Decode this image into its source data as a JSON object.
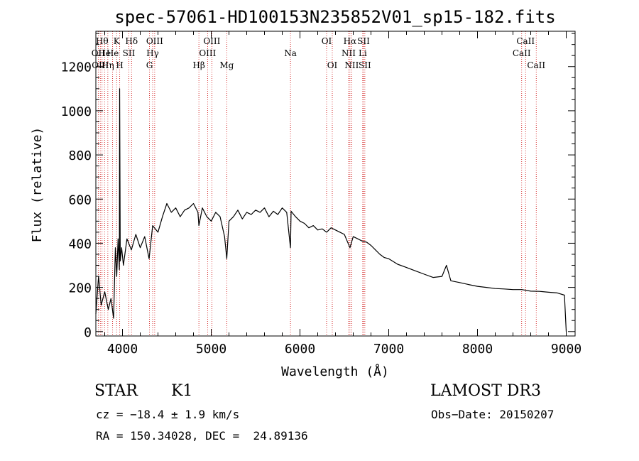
{
  "chart_data": {
    "type": "line",
    "title": "spec-57061-HD100153N235852V01_sp15-182.fits",
    "xlabel": "Wavelength (Å)",
    "ylabel": "Flux (relative)",
    "xlim": [
      3700,
      9100
    ],
    "ylim": [
      -20,
      1360
    ],
    "xticks": [
      4000,
      5000,
      6000,
      7000,
      8000,
      9000
    ],
    "yticks": [
      0,
      200,
      400,
      600,
      800,
      1000,
      1200
    ],
    "x_minor_step": 200,
    "y_minor_step": 50,
    "series": [
      {
        "name": "flux",
        "color": "#000000",
        "x": [
          3700,
          3730,
          3760,
          3800,
          3840,
          3870,
          3900,
          3920,
          3935,
          3950,
          3965,
          3968,
          3975,
          3990,
          4010,
          4050,
          4100,
          4150,
          4200,
          4250,
          4300,
          4340,
          4400,
          4450,
          4500,
          4550,
          4600,
          4650,
          4700,
          4750,
          4800,
          4850,
          4861,
          4900,
          4950,
          5000,
          5050,
          5100,
          5150,
          5175,
          5200,
          5250,
          5300,
          5350,
          5400,
          5450,
          5500,
          5550,
          5600,
          5650,
          5700,
          5750,
          5800,
          5850,
          5893,
          5900,
          5950,
          6000,
          6050,
          6100,
          6150,
          6200,
          6250,
          6300,
          6350,
          6400,
          6450,
          6500,
          6563,
          6600,
          6650,
          6700,
          6750,
          6800,
          6850,
          6900,
          6950,
          7000,
          7100,
          7200,
          7300,
          7400,
          7500,
          7600,
          7650,
          7700,
          7800,
          7900,
          8000,
          8100,
          8200,
          8300,
          8400,
          8500,
          8600,
          8700,
          8800,
          8900,
          8980,
          9000
        ],
        "y": [
          80,
          250,
          120,
          180,
          100,
          150,
          60,
          380,
          250,
          420,
          280,
          1100,
          320,
          380,
          300,
          420,
          370,
          440,
          380,
          430,
          330,
          480,
          450,
          520,
          580,
          540,
          560,
          520,
          550,
          560,
          580,
          540,
          480,
          560,
          520,
          500,
          540,
          520,
          430,
          330,
          500,
          520,
          550,
          510,
          540,
          530,
          550,
          540,
          560,
          520,
          545,
          530,
          560,
          540,
          380,
          545,
          520,
          500,
          490,
          470,
          480,
          460,
          465,
          450,
          470,
          460,
          450,
          440,
          380,
          430,
          420,
          410,
          405,
          390,
          370,
          350,
          335,
          330,
          305,
          290,
          275,
          260,
          245,
          250,
          300,
          230,
          222,
          213,
          205,
          200,
          195,
          193,
          190,
          190,
          183,
          182,
          178,
          175,
          165,
          0
        ]
      }
    ],
    "lines": [
      {
        "x": 3727,
        "row": 2,
        "label": "OII"
      },
      {
        "x": 3750,
        "row": 3,
        "label": "OIII"
      },
      {
        "x": 3770,
        "row": 1,
        "label": "Hθ"
      },
      {
        "x": 3798,
        "row": 2,
        "label": "He"
      },
      {
        "x": 3835,
        "row": 3,
        "label": "Hη"
      },
      {
        "x": 3889,
        "row": 2,
        "label": "He"
      },
      {
        "x": 3934,
        "row": 1,
        "label": "K"
      },
      {
        "x": 3969,
        "row": 3,
        "label": "H"
      },
      {
        "x": 4072,
        "row": 2,
        "label": "SII"
      },
      {
        "x": 4102,
        "row": 1,
        "label": "Hδ"
      },
      {
        "x": 4304,
        "row": 3,
        "label": "G"
      },
      {
        "x": 4340,
        "row": 2,
        "label": "Hγ"
      },
      {
        "x": 4363,
        "row": 1,
        "label": "OIII"
      },
      {
        "x": 4861,
        "row": 3,
        "label": "Hβ"
      },
      {
        "x": 4959,
        "row": 2,
        "label": "OIII"
      },
      {
        "x": 5007,
        "row": 1,
        "label": "OIII"
      },
      {
        "x": 5175,
        "row": 3,
        "label": "Mg"
      },
      {
        "x": 5893,
        "row": 2,
        "label": "Na"
      },
      {
        "x": 6300,
        "row": 1,
        "label": "OI"
      },
      {
        "x": 6364,
        "row": 3,
        "label": "OI"
      },
      {
        "x": 6548,
        "row": 2,
        "label": "NII"
      },
      {
        "x": 6563,
        "row": 1,
        "label": "Hα"
      },
      {
        "x": 6583,
        "row": 3,
        "label": "NII"
      },
      {
        "x": 6707,
        "row": 2,
        "label": "Li"
      },
      {
        "x": 6716,
        "row": 1,
        "label": "SII"
      },
      {
        "x": 6731,
        "row": 3,
        "label": "SII"
      },
      {
        "x": 8498,
        "row": 2,
        "label": "CaII"
      },
      {
        "x": 8542,
        "row": 1,
        "label": "CaII"
      },
      {
        "x": 8662,
        "row": 3,
        "label": "CaII"
      }
    ]
  },
  "info": {
    "object_type": "STAR",
    "subclass": "K1",
    "survey": "LAMOST DR3",
    "cz": "cz = −18.4 ± 1.9 km/s",
    "obs_date": "Obs−Date: 20150207",
    "radec": "RA = 150.34028, DEC =  24.89136"
  },
  "colors": {
    "axes": "#000000",
    "line_markers": "#cc0000",
    "background": "#ffffff"
  }
}
